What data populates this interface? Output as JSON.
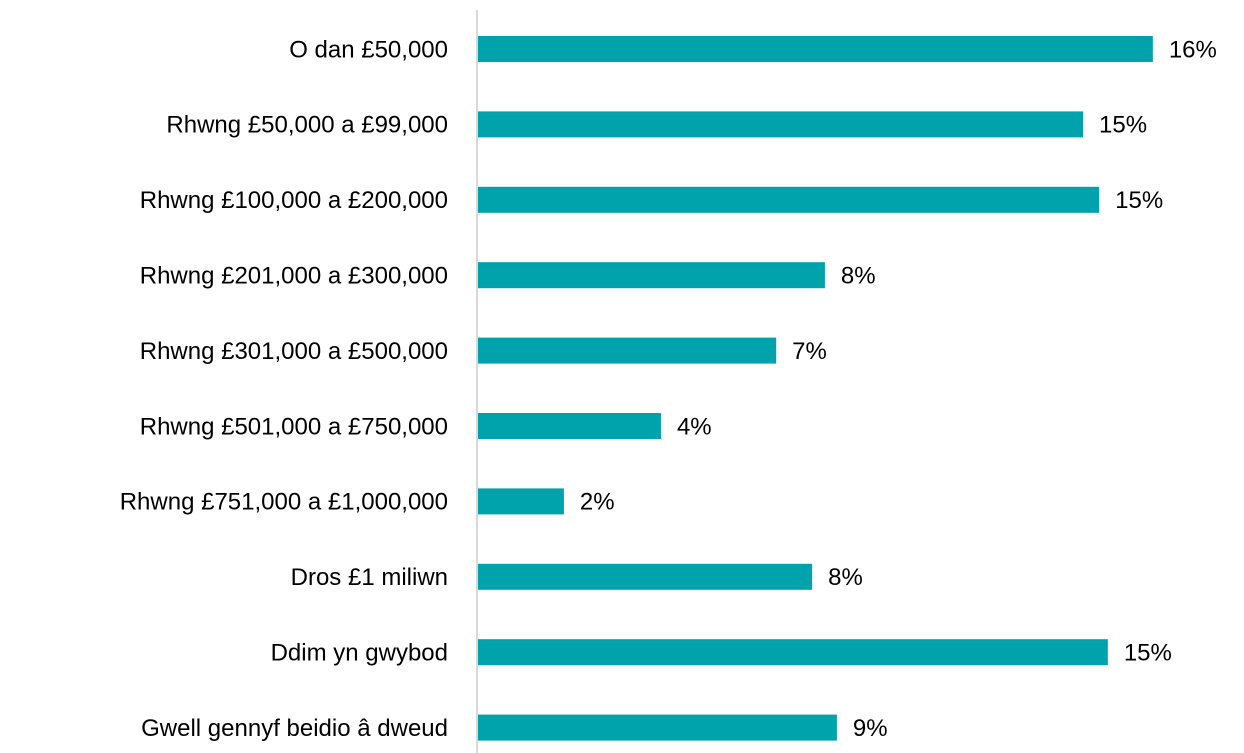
{
  "chart_data": {
    "type": "bar",
    "orientation": "horizontal",
    "categories": [
      "O dan £50,000",
      "Rhwng £50,000 a £99,000",
      "Rhwng £100,000 a £200,000",
      "Rhwng £201,000 a £300,000",
      "Rhwng £301,000 a £500,000",
      "Rhwng £501,000 a £750,000",
      "Rhwng £751,000 a £1,000,000",
      "Dros £1 miliwn",
      "Ddim yn gwybod",
      "Gwell gennyf beidio â dweud"
    ],
    "values": [
      16.34,
      14.65,
      15.04,
      8.4,
      7.22,
      4.43,
      2.08,
      8.09,
      15.25,
      8.69
    ],
    "value_labels": [
      "16%",
      "15%",
      "15%",
      "8%",
      "7%",
      "4%",
      "2%",
      "8%",
      "15%",
      "9%"
    ],
    "color": "#00a2ab"
  }
}
